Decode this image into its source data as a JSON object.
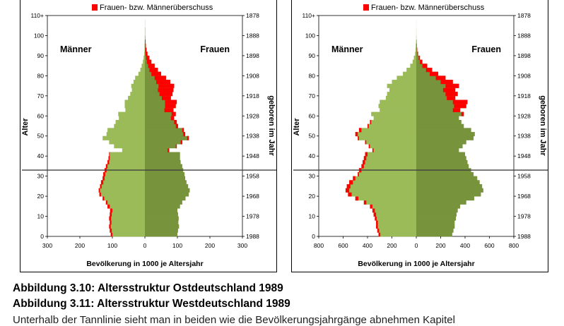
{
  "legend_label": "Frauen- bzw. Männerüberschuss",
  "colors": {
    "male": "#9bbb59",
    "female": "#77933c",
    "surplus": "#ff0000",
    "marker": "#404040"
  },
  "chart_data": [
    {
      "type": "population-pyramid",
      "legend": "Frauen- bzw. Männerüberschuss",
      "xlabel": "Bevölkerung in 1000 je Altersjahr",
      "ylabel": "Alter",
      "y2label": "geboren im Jahr",
      "left_label": "Männer",
      "right_label": "Frauen",
      "xlim": 300,
      "x_ticks": [
        300,
        200,
        100,
        0,
        100,
        200,
        300
      ],
      "ylim": [
        0,
        110
      ],
      "y_ticks": [
        "0",
        "10",
        "20",
        "30",
        "40",
        "50",
        "60",
        "70",
        "80",
        "90",
        "100",
        "110+"
      ],
      "y2_ticks": [
        "1988",
        "1978",
        "1968",
        "1958",
        "1948",
        "1938",
        "1928",
        "1918",
        "1908",
        "1898",
        "1888",
        "1878"
      ],
      "marker_age": 33,
      "ages": [
        0,
        2,
        4,
        6,
        8,
        10,
        12,
        14,
        16,
        18,
        20,
        22,
        24,
        26,
        28,
        30,
        32,
        34,
        36,
        38,
        40,
        42,
        44,
        46,
        48,
        50,
        52,
        54,
        56,
        58,
        60,
        62,
        64,
        66,
        68,
        70,
        72,
        74,
        76,
        78,
        80,
        82,
        84,
        86,
        88,
        90,
        92,
        94,
        96,
        98,
        100,
        104,
        108
      ],
      "male": [
        105,
        108,
        110,
        108,
        110,
        108,
        107,
        115,
        120,
        130,
        140,
        142,
        138,
        135,
        130,
        128,
        124,
        120,
        115,
        112,
        110,
        70,
        95,
        110,
        130,
        118,
        115,
        95,
        90,
        80,
        82,
        60,
        62,
        62,
        52,
        45,
        40,
        42,
        35,
        30,
        20,
        14,
        10,
        6,
        4,
        2,
        1,
        1,
        0.5,
        0.3,
        0.2,
        0.1,
        0
      ],
      "female": [
        100,
        102,
        105,
        103,
        104,
        102,
        100,
        108,
        115,
        125,
        135,
        138,
        133,
        128,
        124,
        122,
        118,
        115,
        110,
        108,
        108,
        75,
        98,
        115,
        135,
        124,
        120,
        102,
        98,
        90,
        95,
        88,
        95,
        98,
        80,
        85,
        88,
        90,
        78,
        65,
        50,
        40,
        30,
        20,
        14,
        8,
        5,
        3,
        2,
        1,
        0.5,
        0.2,
        0
      ]
    },
    {
      "type": "population-pyramid",
      "legend": "Frauen- bzw. Männerüberschuss",
      "xlabel": "Bevölkerung in 1000 je Altersjahr",
      "ylabel": "Alter",
      "y2label": "geboren im Jahr",
      "left_label": "Männer",
      "right_label": "Frauen",
      "xlim": 800,
      "x_ticks": [
        800,
        600,
        400,
        200,
        0,
        200,
        400,
        600,
        800
      ],
      "ylim": [
        0,
        110
      ],
      "y_ticks": [
        "0",
        "10",
        "20",
        "30",
        "40",
        "50",
        "60",
        "70",
        "80",
        "90",
        "100",
        "110+"
      ],
      "y2_ticks": [
        "1988",
        "1978",
        "1968",
        "1958",
        "1948",
        "1938",
        "1928",
        "1918",
        "1908",
        "1898",
        "1888",
        "1878"
      ],
      "marker_age": 33,
      "ages": [
        0,
        2,
        4,
        6,
        8,
        10,
        12,
        14,
        16,
        18,
        20,
        22,
        24,
        26,
        28,
        30,
        32,
        34,
        36,
        38,
        40,
        42,
        44,
        46,
        48,
        50,
        52,
        54,
        56,
        58,
        60,
        62,
        64,
        66,
        68,
        70,
        72,
        74,
        76,
        78,
        80,
        82,
        84,
        86,
        88,
        90,
        92,
        94,
        96,
        98,
        100,
        104,
        108
      ],
      "male": [
        310,
        320,
        330,
        330,
        340,
        350,
        360,
        380,
        430,
        500,
        560,
        580,
        570,
        550,
        520,
        480,
        470,
        450,
        440,
        430,
        420,
        360,
        390,
        420,
        480,
        500,
        470,
        400,
        380,
        350,
        370,
        300,
        310,
        300,
        250,
        240,
        220,
        240,
        200,
        160,
        110,
        80,
        50,
        30,
        20,
        10,
        6,
        4,
        2,
        1,
        0.5,
        0.2,
        0
      ],
      "female": [
        295,
        305,
        315,
        315,
        325,
        330,
        340,
        360,
        410,
        475,
        530,
        550,
        540,
        520,
        500,
        470,
        450,
        430,
        420,
        410,
        400,
        350,
        380,
        410,
        470,
        480,
        450,
        390,
        370,
        350,
        390,
        360,
        410,
        420,
        320,
        340,
        320,
        350,
        300,
        240,
        180,
        130,
        90,
        50,
        30,
        15,
        8,
        5,
        3,
        1,
        0.5,
        0.2,
        0
      ]
    }
  ],
  "captions": [
    "Abbildung 3.10: Altersstruktur Ostdeutschland 1989",
    "Abbildung 3.11: Altersstruktur Westdeutschland 1989"
  ],
  "body_text": "Unterhalb der Tannlinie sieht man in beiden wie die Bevölkerungsjahrgänge abnehmen Kapitel"
}
